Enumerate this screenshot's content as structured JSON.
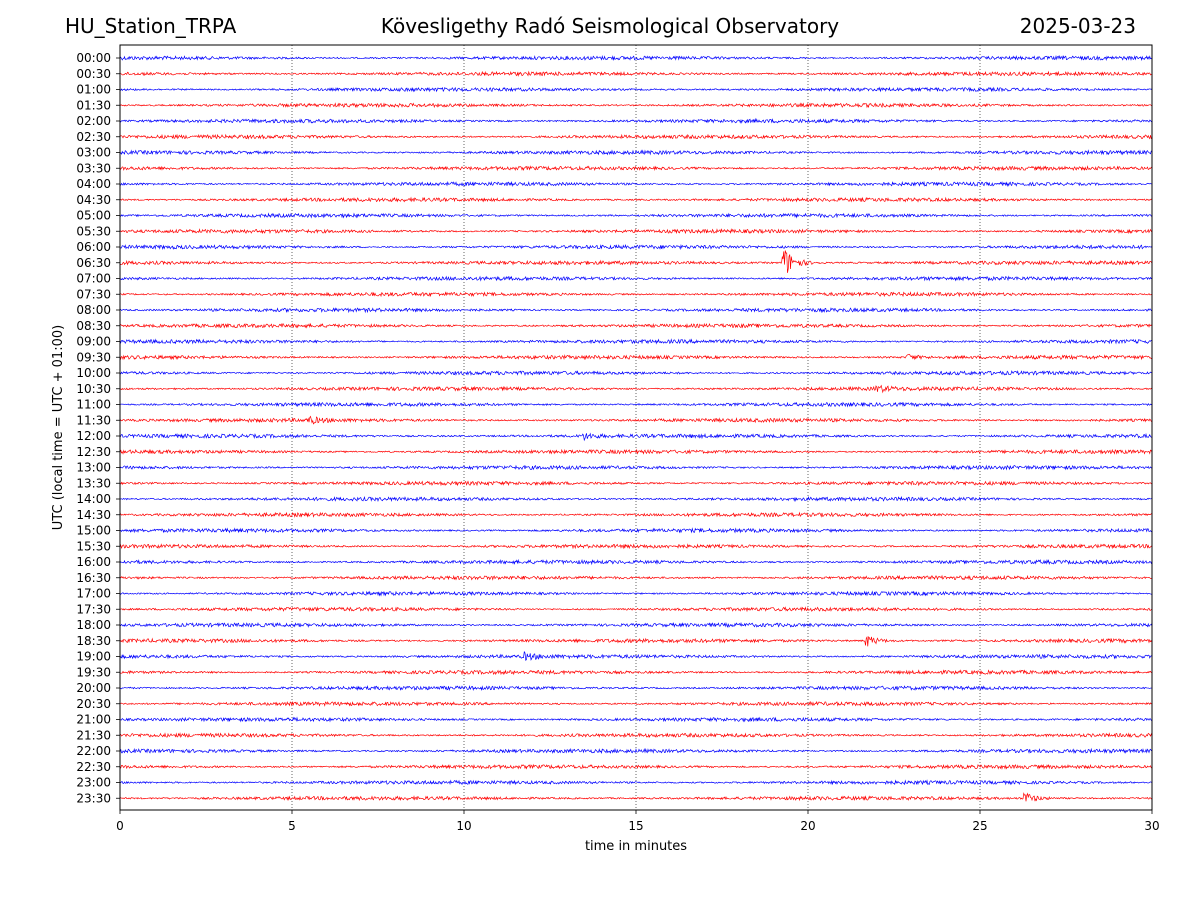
{
  "header": {
    "station": "HU_Station_TRPA",
    "observatory": "Kövesligethy Radó Seismological Observatory",
    "date": "2025-03-23"
  },
  "chart_data": {
    "type": "line",
    "title": "Kövesligethy Radó Seismological Observatory",
    "xlabel": "time in minutes",
    "ylabel": "UTC (local time = UTC + 01:00)",
    "xlim": [
      0,
      30
    ],
    "x_ticks": [
      0,
      5,
      10,
      15,
      20,
      25,
      30
    ],
    "grid": "vertical dotted lines at x ticks",
    "legend": "none",
    "series_colors": [
      "#0000ff",
      "#ff0000"
    ],
    "rows": [
      "00:00",
      "00:30",
      "01:00",
      "01:30",
      "02:00",
      "02:30",
      "03:00",
      "03:30",
      "04:00",
      "04:30",
      "05:00",
      "05:30",
      "06:00",
      "06:30",
      "07:00",
      "07:30",
      "08:00",
      "08:30",
      "09:00",
      "09:30",
      "10:00",
      "10:30",
      "11:00",
      "11:30",
      "12:00",
      "12:30",
      "13:00",
      "13:30",
      "14:00",
      "14:30",
      "15:00",
      "15:30",
      "16:00",
      "16:30",
      "17:00",
      "17:30",
      "18:00",
      "18:30",
      "19:00",
      "19:30",
      "20:00",
      "20:30",
      "21:00",
      "21:30",
      "22:00",
      "22:30",
      "23:00",
      "23:30"
    ],
    "events": [
      {
        "row": "06:30",
        "minute": 19.3,
        "amplitude": "large"
      },
      {
        "row": "18:30",
        "minute": 21.7,
        "amplitude": "medium"
      },
      {
        "row": "23:30",
        "minute": 26.3,
        "amplitude": "medium"
      },
      {
        "row": "09:30",
        "minute": 22.9,
        "amplitude": "small"
      },
      {
        "row": "10:30",
        "minute": 22.0,
        "amplitude": "small"
      },
      {
        "row": "11:30",
        "minute": 5.5,
        "amplitude": "small"
      },
      {
        "row": "12:00",
        "minute": 13.5,
        "amplitude": "small"
      },
      {
        "row": "19:00",
        "minute": 11.8,
        "amplitude": "small"
      }
    ]
  }
}
